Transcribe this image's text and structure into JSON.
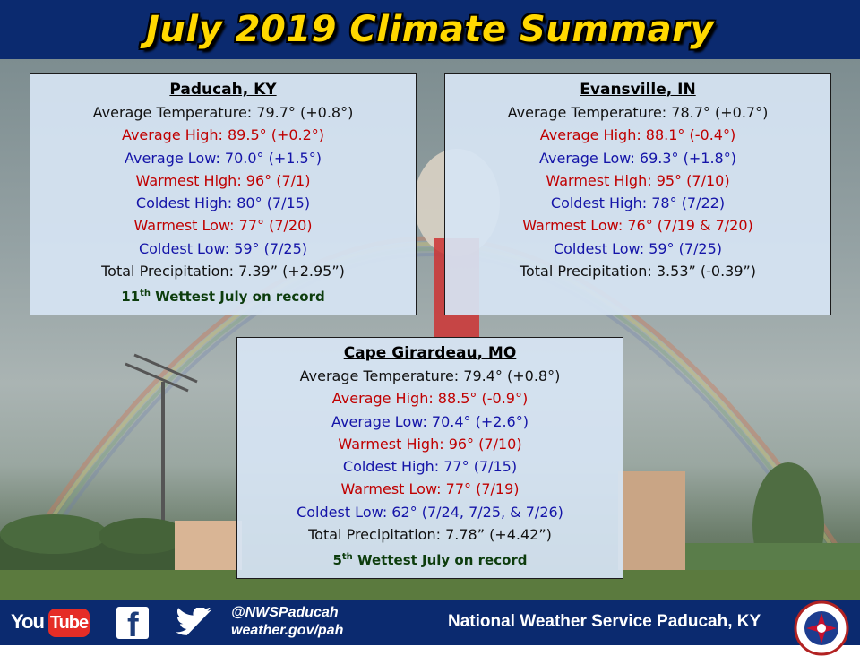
{
  "header": {
    "title": "July 2019 Climate Summary"
  },
  "boxes": [
    {
      "city": "Paducah, KY",
      "lines": [
        {
          "text": "Average Temperature: 79.7° (+0.8°)",
          "color": "black"
        },
        {
          "text": "Average High: 89.5° (+0.2°)",
          "color": "red"
        },
        {
          "text": "Average Low: 70.0° (+1.5°)",
          "color": "blue"
        },
        {
          "text": "Warmest High: 96° (7/1)",
          "color": "red"
        },
        {
          "text": "Coldest High: 80° (7/15)",
          "color": "blue"
        },
        {
          "text": "Warmest Low: 77° (7/20)",
          "color": "red"
        },
        {
          "text": "Coldest Low: 59° (7/25)",
          "color": "blue"
        },
        {
          "text": "Total Precipitation: 7.39” (+2.95”)",
          "color": "black"
        }
      ],
      "record": {
        "ordinal": "11",
        "suffix": "th",
        "text": " Wettest July on record"
      }
    },
    {
      "city": "Evansville, IN",
      "lines": [
        {
          "text": "Average Temperature: 78.7° (+0.7°)",
          "color": "black"
        },
        {
          "text": "Average High: 88.1° (-0.4°)",
          "color": "red"
        },
        {
          "text": "Average Low: 69.3° (+1.8°)",
          "color": "blue"
        },
        {
          "text": "Warmest High: 95° (7/10)",
          "color": "red"
        },
        {
          "text": "Coldest High: 78° (7/22)",
          "color": "blue"
        },
        {
          "text": "Warmest Low: 76° (7/19 & 7/20)",
          "color": "red"
        },
        {
          "text": "Coldest Low: 59° (7/25)",
          "color": "blue"
        },
        {
          "text": "Total Precipitation: 3.53” (-0.39”)",
          "color": "black"
        }
      ]
    },
    {
      "city": "Cape Girardeau, MO",
      "lines": [
        {
          "text": "Average Temperature: 79.4° (+0.8°)",
          "color": "black"
        },
        {
          "text": "Average High: 88.5° (-0.9°)",
          "color": "red"
        },
        {
          "text": "Average Low: 70.4° (+2.6°)",
          "color": "blue"
        },
        {
          "text": "Warmest High: 96° (7/10)",
          "color": "red"
        },
        {
          "text": "Coldest High: 77° (7/15)",
          "color": "blue"
        },
        {
          "text": "Warmest Low: 77° (7/19)",
          "color": "red"
        },
        {
          "text": "Coldest Low: 62° (7/24, 7/25, & 7/26)",
          "color": "blue"
        },
        {
          "text": "Total Precipitation: 7.78” (+4.42”)",
          "color": "black"
        }
      ],
      "record": {
        "ordinal": "5",
        "suffix": "th",
        "text": " Wettest July on record"
      }
    }
  ],
  "footer": {
    "youtube_you": "You",
    "youtube_tube": "Tube",
    "facebook_letter": "f",
    "social_handle": "@NWSPaducah",
    "website": "weather.gov/pah",
    "office_name": "National Weather Service Paducah, KY"
  },
  "icons": {
    "youtube": "youtube-logo",
    "facebook": "facebook-logo",
    "twitter": "twitter-bird-icon",
    "nws": "nws-logo"
  },
  "colors": {
    "header_bg": "#0b2a6f",
    "title": "#ffd800",
    "red_text": "#c00000",
    "blue_text": "#1414a8",
    "record_text": "#0d3d0d",
    "box_bg": "#d6e4f3"
  }
}
